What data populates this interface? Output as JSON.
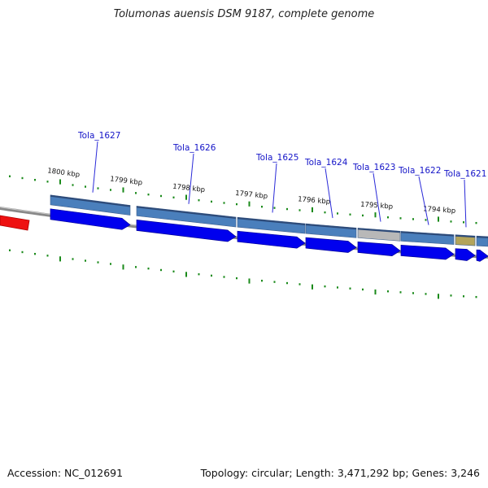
{
  "title": "Tolumonas auensis DSM 9187, complete genome",
  "footer": {
    "accession": "Accession: NC_012691",
    "topology": "Topology: circular; Length: 3,471,292 bp; Genes: 3,246"
  },
  "kbp_labels": [
    "1800 kbp",
    "1799 kbp",
    "1798 kbp",
    "1797 kbp",
    "1796 kbp",
    "1795 kbp",
    "1794 kbp"
  ],
  "genes": [
    {
      "locus": "Tola_1627",
      "color": "#4a7fbc"
    },
    {
      "locus": "Tola_1626",
      "color": "#4a7fbc"
    },
    {
      "locus": "Tola_1625",
      "color": "#4a7fbc"
    },
    {
      "locus": "Tola_1624",
      "color": "#b8b8b8"
    },
    {
      "locus": "Tola_1623",
      "color": "#4a7fbc"
    },
    {
      "locus": "Tola_1622",
      "color": "#b3a45a"
    },
    {
      "locus": "Tola_1621",
      "color": "#4a7fbc"
    }
  ],
  "colors": {
    "cds_arrow": "#0000ee",
    "tick": "#1a8a1a",
    "backbone": "#888888",
    "contig_marker": "#ee1111",
    "label_leader": "#2a2ad8"
  }
}
